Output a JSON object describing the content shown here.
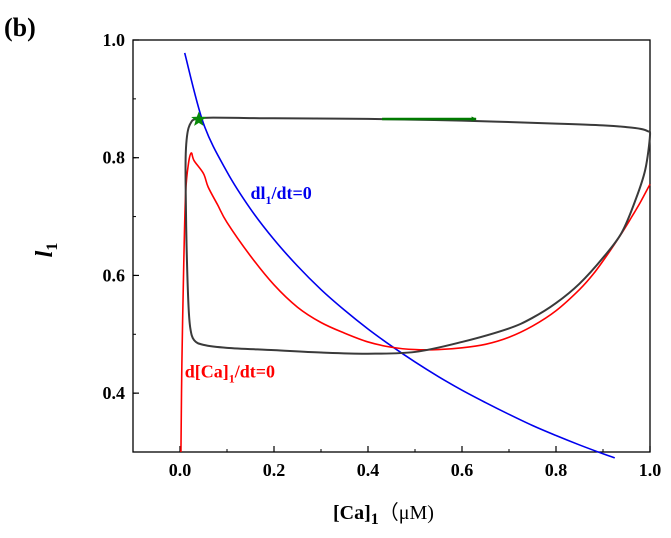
{
  "chart_data": {
    "type": "line",
    "panel_label": "(b)",
    "xlabel_main": "[Ca]",
    "xlabel_sub": "1",
    "xlabel_unit": "（μM)",
    "ylabel_main": "l",
    "ylabel_sub": "1",
    "xlim": [
      -0.1,
      1.0
    ],
    "ylim": [
      0.3,
      1.0
    ],
    "xticks": [
      0.0,
      0.2,
      0.4,
      0.6,
      0.8,
      1.0
    ],
    "xtick_labels": [
      "0.0",
      "0.2",
      "0.4",
      "0.6",
      "0.8",
      "1.0"
    ],
    "yticks": [
      0.4,
      0.6,
      0.8,
      1.0
    ],
    "ytick_labels": [
      "0.4",
      "0.6",
      "0.8",
      "1.0"
    ],
    "series": [
      {
        "name": "dl1/dt=0 nullcline",
        "color": "#0000ee",
        "x": [
          0.01,
          0.05,
          0.1,
          0.15,
          0.2,
          0.25,
          0.3,
          0.35,
          0.4,
          0.45,
          0.5,
          0.55,
          0.6,
          0.65,
          0.7,
          0.75,
          0.8,
          0.85,
          0.9,
          0.925
        ],
        "y": [
          0.978,
          0.858,
          0.776,
          0.713,
          0.661,
          0.616,
          0.576,
          0.541,
          0.509,
          0.48,
          0.453,
          0.428,
          0.405,
          0.384,
          0.364,
          0.345,
          0.328,
          0.312,
          0.297,
          0.29
        ]
      },
      {
        "name": "d[Ca]1/dt=0 nullcline",
        "color": "#ff0000",
        "x": [
          0.002,
          0.004,
          0.008,
          0.012,
          0.018,
          0.024,
          0.03,
          0.05,
          0.06,
          0.08,
          0.1,
          0.15,
          0.2,
          0.25,
          0.3,
          0.35,
          0.4,
          0.45,
          0.5,
          0.55,
          0.6,
          0.65,
          0.7,
          0.75,
          0.8,
          0.85,
          0.88,
          0.91,
          0.94,
          0.96,
          0.98,
          1.0
        ],
        "y": [
          0.3,
          0.45,
          0.62,
          0.74,
          0.79,
          0.808,
          0.795,
          0.773,
          0.75,
          0.72,
          0.69,
          0.633,
          0.584,
          0.546,
          0.52,
          0.502,
          0.487,
          0.478,
          0.474,
          0.474,
          0.477,
          0.483,
          0.495,
          0.514,
          0.54,
          0.576,
          0.603,
          0.636,
          0.672,
          0.698,
          0.725,
          0.755
        ]
      },
      {
        "name": "limit cycle trajectory",
        "color": "#3a3a3a",
        "x": [
          0.03,
          0.06,
          0.2,
          0.4,
          0.6,
          0.8,
          0.9,
          0.95,
          0.98,
          0.995,
          1.0,
          0.99,
          0.97,
          0.94,
          0.9,
          0.85,
          0.8,
          0.75,
          0.7,
          0.6,
          0.5,
          0.4,
          0.3,
          0.2,
          0.1,
          0.05,
          0.03,
          0.022,
          0.018,
          0.014,
          0.012,
          0.012,
          0.014,
          0.018,
          0.025,
          0.03
        ],
        "y": [
          0.865,
          0.868,
          0.867,
          0.866,
          0.863,
          0.858,
          0.855,
          0.852,
          0.849,
          0.845,
          0.838,
          0.78,
          0.73,
          0.673,
          0.63,
          0.586,
          0.553,
          0.528,
          0.51,
          0.487,
          0.47,
          0.467,
          0.469,
          0.473,
          0.477,
          0.482,
          0.49,
          0.51,
          0.55,
          0.65,
          0.75,
          0.8,
          0.83,
          0.85,
          0.862,
          0.865
        ]
      }
    ],
    "arrow": {
      "color": "#007a00",
      "x0": 0.43,
      "x1": 0.63,
      "y": 0.865
    },
    "star": {
      "color": "#0a8a0a",
      "x": 0.04,
      "y": 0.865
    },
    "annotations": [
      {
        "id": "blue",
        "main": "dl",
        "sub": "1",
        "tail": "/dt=0",
        "color": "#0000ee",
        "x": 0.15,
        "y": 0.73
      },
      {
        "id": "red",
        "main": "d[Ca]",
        "sub": "1",
        "tail": "/dt=0",
        "color": "#ff0000",
        "x": 0.01,
        "y": 0.427
      }
    ]
  }
}
